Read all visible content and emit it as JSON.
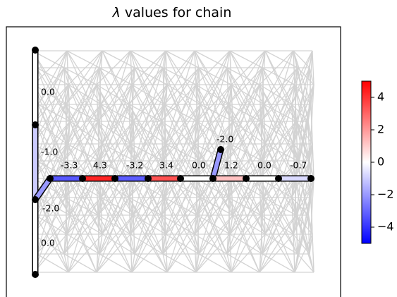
{
  "chart_data": {
    "type": "graph",
    "title": "λ values for chain",
    "title_prefix": "λ",
    "title_rest": " values for chain",
    "background_graph_color": "#d3d3d3",
    "node_color": "#000000",
    "colormap": "bwr",
    "colorbar": {
      "min": -5,
      "max": 5,
      "ticks": [
        4,
        2,
        0,
        -2,
        -4
      ],
      "tick_labels": [
        "4",
        "2",
        "0",
        "−2",
        "−4"
      ]
    },
    "edges": [
      {
        "id": "v1",
        "value": 0.0,
        "label": "0.0"
      },
      {
        "id": "v2",
        "value": -1.0,
        "label": "-1.0"
      },
      {
        "id": "v3",
        "value": -2.0,
        "label": "-2.0"
      },
      {
        "id": "v4",
        "value": 0.0,
        "label": "0.0"
      },
      {
        "id": "h1",
        "value": -3.3,
        "label": "-3.3"
      },
      {
        "id": "h2",
        "value": 4.3,
        "label": "4.3"
      },
      {
        "id": "h3",
        "value": -3.2,
        "label": "-3.2"
      },
      {
        "id": "h4",
        "value": 3.4,
        "label": "3.4"
      },
      {
        "id": "h5",
        "value": 0.0,
        "label": "0.0"
      },
      {
        "id": "b1",
        "value": -2.0,
        "label": "-2.0"
      },
      {
        "id": "h6",
        "value": 1.2,
        "label": "1.2"
      },
      {
        "id": "h7",
        "value": 0.0,
        "label": "0.0"
      },
      {
        "id": "h8",
        "value": -0.7,
        "label": "-0.7"
      }
    ]
  }
}
